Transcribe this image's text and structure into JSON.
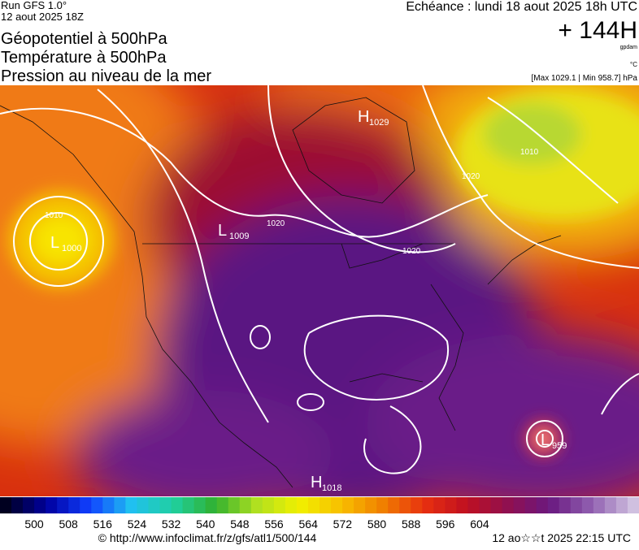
{
  "header": {
    "run": "Run GFS 1.0°",
    "date": "12 aout 2025 18Z",
    "titles": [
      "Géopotentiel à 500hPa",
      "Température à 500hPa",
      "Pression au niveau de la mer"
    ],
    "echeance": "Echéance : lundi 18 aout 2025 18h UTC",
    "lead": "+ 144H",
    "unit_geo": "gpdam",
    "unit_temp": "°C",
    "range": "[Max 1029.1 | Min 958.7] hPa"
  },
  "centers": [
    {
      "letter": "H",
      "value": "1029"
    },
    {
      "letter": "L",
      "value": "1009"
    },
    {
      "letter": "L",
      "value": "1000"
    },
    {
      "letter": "L",
      "value": "959"
    },
    {
      "letter": "H",
      "value": "1018"
    }
  ],
  "isobar_labels": [
    "1010",
    "1020",
    "1020",
    "1010",
    "1020"
  ],
  "scale": {
    "labels": [
      500,
      508,
      516,
      524,
      532,
      540,
      548,
      556,
      564,
      572,
      580,
      588,
      596,
      604
    ]
  },
  "footer": {
    "source": "© http://www.infoclimat.fr/z/gfs/atl1/500/144",
    "timestamp": "12 ao☆☆t 2025 22:15 UTC"
  }
}
